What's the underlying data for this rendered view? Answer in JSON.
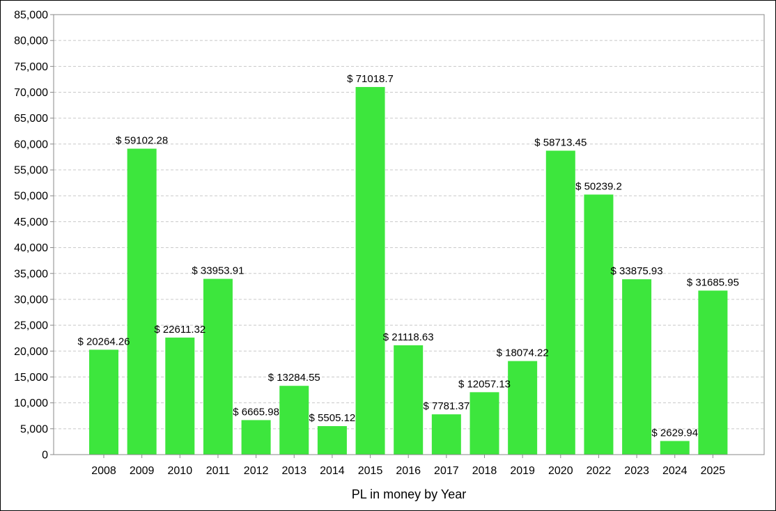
{
  "chart_data": {
    "type": "bar",
    "title": "",
    "xlabel": "PL in money by Year",
    "ylabel": "",
    "ylim": [
      0,
      85000
    ],
    "y_ticks": [
      0,
      5000,
      10000,
      15000,
      20000,
      25000,
      30000,
      35000,
      40000,
      45000,
      50000,
      55000,
      60000,
      65000,
      70000,
      75000,
      80000,
      85000
    ],
    "y_tick_labels": [
      "0",
      "5,000",
      "10,000",
      "15,000",
      "20,000",
      "25,000",
      "30,000",
      "35,000",
      "40,000",
      "45,000",
      "50,000",
      "55,000",
      "60,000",
      "65,000",
      "70,000",
      "75,000",
      "80,000",
      "85,000"
    ],
    "grid": true,
    "legend": "none",
    "bar_color": "#3de63d",
    "categories": [
      "2008",
      "2009",
      "2010",
      "2011",
      "2012",
      "2013",
      "2014",
      "2015",
      "2016",
      "2017",
      "2018",
      "2019",
      "2020",
      "2022",
      "2023",
      "2024",
      "2025"
    ],
    "values": [
      20264.26,
      59102.28,
      22611.32,
      33953.91,
      6665.98,
      13284.55,
      5505.12,
      71018.7,
      21118.63,
      7781.37,
      12057.13,
      18074.22,
      58713.45,
      50239.2,
      33875.93,
      2629.94,
      31685.95
    ],
    "data_labels": [
      "$ 20264.26",
      "$ 59102.28",
      "$ 22611.32",
      "$ 33953.91",
      "$ 6665.98",
      "$ 13284.55",
      "$ 5505.12",
      "$ 71018.7",
      "$ 21118.63",
      "$ 7781.37",
      "$ 12057.13",
      "$ 18074.22",
      "$ 58713.45",
      "$ 50239.2",
      "$ 33875.93",
      "$ 2629.94",
      "$ 31685.95"
    ]
  }
}
